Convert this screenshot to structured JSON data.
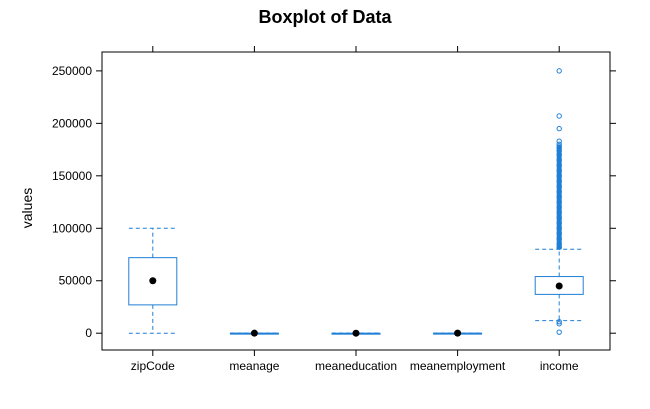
{
  "chart_data": {
    "type": "box",
    "title": "Boxplot of Data",
    "xlabel": "",
    "ylabel": "values",
    "ylim": [
      -16000,
      268000
    ],
    "yticks": [
      0,
      50000,
      100000,
      150000,
      200000,
      250000
    ],
    "ytick_labels": [
      "0",
      "50000",
      "100000",
      "150000",
      "200000",
      "250000"
    ],
    "categories": [
      "zipCode",
      "meanage",
      "meaneducation",
      "meanemployment",
      "income"
    ],
    "boxes": [
      {
        "whisker_low": 0,
        "q1": 27000,
        "median": 50000,
        "q3": 72000,
        "whisker_high": 100000,
        "outliers": []
      },
      {
        "whisker_low": 0,
        "q1": 0,
        "median": 40,
        "q3": 80,
        "whisker_high": 120,
        "outliers": []
      },
      {
        "whisker_low": 0,
        "q1": 0,
        "median": 14,
        "q3": 28,
        "whisker_high": 40,
        "outliers": []
      },
      {
        "whisker_low": 0,
        "q1": 0,
        "median": 50,
        "q3": 90,
        "whisker_high": 120,
        "outliers": []
      },
      {
        "whisker_low": 12000,
        "q1": 37000,
        "median": 45000,
        "q3": 54000,
        "whisker_high": 80000,
        "outliers": [
          250000,
          207000,
          195000,
          183000,
          180000,
          177000,
          174000,
          170000,
          165000,
          160000,
          155000,
          150000,
          145000,
          140000,
          135000,
          130000,
          125000,
          120000,
          115000,
          110000,
          105000,
          100000,
          95000,
          90000,
          85000,
          82000,
          11000,
          9000,
          1000
        ]
      }
    ],
    "colors": {
      "box": "#1f7fd6",
      "outlier": "#1f7fd6",
      "median_dot": "#000000",
      "frame": "#000000"
    },
    "grid": false,
    "legend": "none"
  }
}
